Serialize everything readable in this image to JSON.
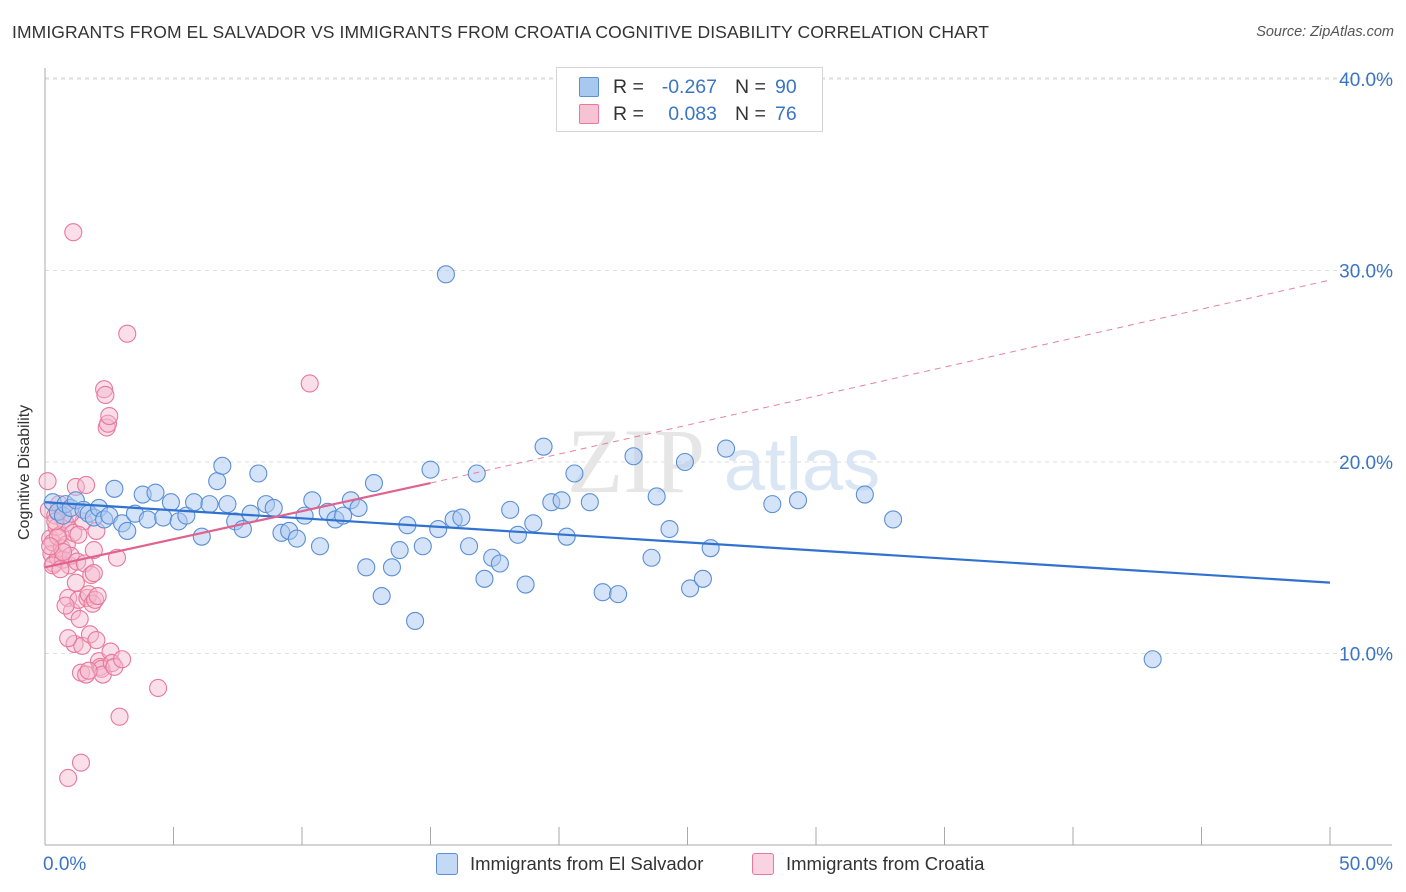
{
  "header": {
    "title": "IMMIGRANTS FROM EL SALVADOR VS IMMIGRANTS FROM CROATIA COGNITIVE DISABILITY CORRELATION CHART",
    "source": "Source: ZipAtlas.com"
  },
  "legend": {
    "rows": [
      {
        "r_label": "R =",
        "r_value": "-0.267",
        "n_label": "N =",
        "n_value": "90"
      },
      {
        "r_label": "R =",
        "r_value": "0.083",
        "n_label": "N =",
        "n_value": "76"
      }
    ]
  },
  "watermark": {
    "part1": "ZIP",
    "part2": "atlas"
  },
  "colors": {
    "blue_fill": "#a9c8f0",
    "blue_stroke": "#5b8fd6",
    "blue_line": "#2f72cf",
    "pink_fill": "#f5b8cc",
    "pink_stroke": "#e8789c",
    "pink_line": "#e0628e",
    "tick_text": "#3a75c4",
    "grid": "#dddddd"
  },
  "chart_data": {
    "type": "scatter",
    "title": "IMMIGRANTS FROM EL SALVADOR VS IMMIGRANTS FROM CROATIA COGNITIVE DISABILITY CORRELATION CHART",
    "xlabel": "",
    "ylabel": "Cognitive Disability",
    "xlim": [
      0,
      50
    ],
    "ylim": [
      0,
      42
    ],
    "x_tick_labels": [
      "0.0%",
      "50.0%"
    ],
    "y_ticks": [
      10,
      20,
      30,
      40
    ],
    "y_tick_labels": [
      "10.0%",
      "20.0%",
      "30.0%",
      "40.0%"
    ],
    "grid": "horizontal dashed",
    "legend_position": "bottom",
    "series": [
      {
        "name": "Immigrants from El Salvador",
        "color": "#5b8fd6",
        "trend": {
          "x": [
            0,
            50
          ],
          "y": [
            17.9,
            13.7
          ],
          "style": "solid"
        },
        "points": [
          [
            0.3,
            17.9
          ],
          [
            0.5,
            17.4
          ],
          [
            0.7,
            17.2
          ],
          [
            0.8,
            17.8
          ],
          [
            1.0,
            17.6
          ],
          [
            1.2,
            18.0
          ],
          [
            1.5,
            17.5
          ],
          [
            1.7,
            17.3
          ],
          [
            1.9,
            17.1
          ],
          [
            2.1,
            17.6
          ],
          [
            2.3,
            17.0
          ],
          [
            2.5,
            17.2
          ],
          [
            2.7,
            18.6
          ],
          [
            3.0,
            16.8
          ],
          [
            3.2,
            16.4
          ],
          [
            3.5,
            17.3
          ],
          [
            3.8,
            18.3
          ],
          [
            4.0,
            17.0
          ],
          [
            4.3,
            18.4
          ],
          [
            4.6,
            17.1
          ],
          [
            4.9,
            17.9
          ],
          [
            5.2,
            16.9
          ],
          [
            5.5,
            17.2
          ],
          [
            5.8,
            17.9
          ],
          [
            6.1,
            16.1
          ],
          [
            6.4,
            17.8
          ],
          [
            6.7,
            19.0
          ],
          [
            6.9,
            19.8
          ],
          [
            7.1,
            17.8
          ],
          [
            7.4,
            16.9
          ],
          [
            7.7,
            16.5
          ],
          [
            8.0,
            17.3
          ],
          [
            8.3,
            19.4
          ],
          [
            8.6,
            17.8
          ],
          [
            8.9,
            17.6
          ],
          [
            9.2,
            16.3
          ],
          [
            9.5,
            16.4
          ],
          [
            9.8,
            16.0
          ],
          [
            10.1,
            17.2
          ],
          [
            10.4,
            18.0
          ],
          [
            10.7,
            15.6
          ],
          [
            11.0,
            17.4
          ],
          [
            11.3,
            17.0
          ],
          [
            11.6,
            17.2
          ],
          [
            11.9,
            18.0
          ],
          [
            12.2,
            17.6
          ],
          [
            12.5,
            14.5
          ],
          [
            12.8,
            18.9
          ],
          [
            13.1,
            13.0
          ],
          [
            13.5,
            14.5
          ],
          [
            13.8,
            15.4
          ],
          [
            14.1,
            16.7
          ],
          [
            14.4,
            11.7
          ],
          [
            14.7,
            15.6
          ],
          [
            15.0,
            19.6
          ],
          [
            15.3,
            16.5
          ],
          [
            15.6,
            29.8
          ],
          [
            15.9,
            17.0
          ],
          [
            16.2,
            17.1
          ],
          [
            16.5,
            15.6
          ],
          [
            16.8,
            19.4
          ],
          [
            17.1,
            13.9
          ],
          [
            17.4,
            15.0
          ],
          [
            17.7,
            14.7
          ],
          [
            18.1,
            17.5
          ],
          [
            18.4,
            16.2
          ],
          [
            18.7,
            13.6
          ],
          [
            19.0,
            16.8
          ],
          [
            19.4,
            20.8
          ],
          [
            19.7,
            17.9
          ],
          [
            20.1,
            18.0
          ],
          [
            20.3,
            16.1
          ],
          [
            20.6,
            19.4
          ],
          [
            21.2,
            17.9
          ],
          [
            21.7,
            13.2
          ],
          [
            22.3,
            13.1
          ],
          [
            22.9,
            20.3
          ],
          [
            23.6,
            15.0
          ],
          [
            23.8,
            18.2
          ],
          [
            24.3,
            16.5
          ],
          [
            24.9,
            20.0
          ],
          [
            25.1,
            13.4
          ],
          [
            25.6,
            13.9
          ],
          [
            25.9,
            15.5
          ],
          [
            26.5,
            20.7
          ],
          [
            28.3,
            17.8
          ],
          [
            29.3,
            18.0
          ],
          [
            31.9,
            18.3
          ],
          [
            43.1,
            9.7
          ],
          [
            33.0,
            17.0
          ]
        ]
      },
      {
        "name": "Immigrants from Croatia",
        "color": "#e8789c",
        "trend": {
          "x": [
            0,
            15
          ],
          "y": [
            14.5,
            18.9
          ],
          "style": "solid",
          "extended": {
            "x": [
              15,
              50
            ],
            "y": [
              18.9,
              29.5
            ],
            "style": "dashed"
          }
        },
        "points": [
          [
            0.1,
            19.0
          ],
          [
            0.15,
            17.5
          ],
          [
            0.2,
            16.0
          ],
          [
            0.25,
            15.2
          ],
          [
            0.3,
            15.8
          ],
          [
            0.35,
            14.7
          ],
          [
            0.4,
            17.2
          ],
          [
            0.45,
            16.6
          ],
          [
            0.5,
            15.0
          ],
          [
            0.55,
            17.8
          ],
          [
            0.6,
            16.2
          ],
          [
            0.65,
            15.5
          ],
          [
            0.7,
            14.9
          ],
          [
            0.75,
            17.0
          ],
          [
            0.8,
            16.8
          ],
          [
            0.85,
            15.7
          ],
          [
            0.9,
            12.9
          ],
          [
            0.95,
            14.6
          ],
          [
            1.0,
            15.1
          ],
          [
            1.05,
            12.2
          ],
          [
            1.1,
            16.3
          ],
          [
            1.15,
            10.5
          ],
          [
            1.2,
            13.7
          ],
          [
            1.25,
            14.8
          ],
          [
            1.3,
            12.8
          ],
          [
            1.35,
            11.8
          ],
          [
            1.4,
            9.0
          ],
          [
            1.45,
            10.4
          ],
          [
            1.5,
            16.9
          ],
          [
            1.55,
            14.7
          ],
          [
            1.6,
            8.9
          ],
          [
            1.65,
            12.9
          ],
          [
            1.7,
            13.1
          ],
          [
            1.75,
            11.0
          ],
          [
            1.8,
            14.1
          ],
          [
            1.85,
            12.6
          ],
          [
            1.9,
            14.2
          ],
          [
            1.95,
            12.8
          ],
          [
            2.0,
            10.7
          ],
          [
            2.05,
            13.0
          ],
          [
            2.1,
            9.6
          ],
          [
            2.15,
            9.3
          ],
          [
            2.2,
            9.2
          ],
          [
            2.25,
            8.9
          ],
          [
            2.3,
            23.8
          ],
          [
            2.35,
            23.5
          ],
          [
            2.4,
            21.8
          ],
          [
            2.45,
            22.0
          ],
          [
            2.5,
            22.4
          ],
          [
            2.55,
            10.1
          ],
          [
            2.6,
            9.5
          ],
          [
            2.7,
            9.3
          ],
          [
            2.8,
            15.0
          ],
          [
            2.9,
            6.7
          ],
          [
            3.0,
            9.7
          ],
          [
            3.2,
            26.7
          ],
          [
            1.1,
            32.0
          ],
          [
            0.9,
            3.5
          ],
          [
            1.4,
            4.3
          ],
          [
            4.4,
            8.2
          ],
          [
            10.3,
            24.1
          ],
          [
            0.5,
            16.1
          ],
          [
            0.7,
            15.3
          ],
          [
            1.0,
            17.3
          ],
          [
            1.2,
            18.7
          ],
          [
            1.6,
            18.8
          ],
          [
            0.3,
            14.6
          ],
          [
            0.8,
            12.5
          ],
          [
            1.9,
            15.4
          ],
          [
            0.4,
            16.9
          ],
          [
            0.6,
            14.4
          ],
          [
            1.3,
            16.2
          ],
          [
            0.2,
            15.6
          ],
          [
            2.0,
            16.4
          ],
          [
            0.9,
            10.8
          ],
          [
            1.7,
            9.1
          ]
        ]
      }
    ]
  }
}
